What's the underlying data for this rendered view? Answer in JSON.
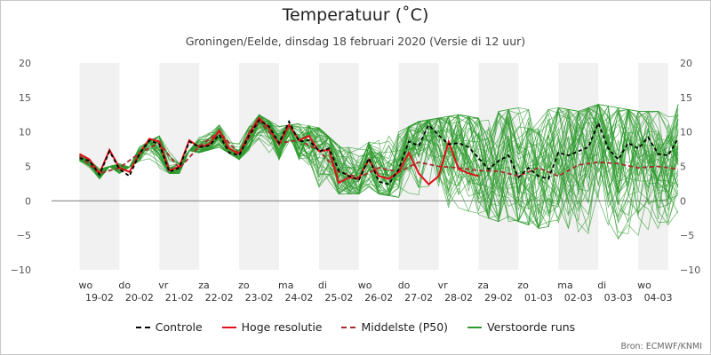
{
  "chart_data": {
    "type": "line",
    "title": "Temperatuur (˚C)",
    "subtitle": "Groningen/Eelde, dinsdag 18 februari 2020 (Versie di 12 uur)",
    "source": "Bron: ECMWF/KNMI",
    "ylim": [
      -10,
      20
    ],
    "yticks": [
      -10,
      -5,
      0,
      5,
      10,
      15,
      20
    ],
    "xlim": [
      0,
      15.5
    ],
    "days": [
      {
        "weekday": "wo",
        "date": "19-02"
      },
      {
        "weekday": "do",
        "date": "20-02"
      },
      {
        "weekday": "vr",
        "date": "21-02"
      },
      {
        "weekday": "za",
        "date": "22-02"
      },
      {
        "weekday": "zo",
        "date": "23-02"
      },
      {
        "weekday": "ma",
        "date": "24-02"
      },
      {
        "weekday": "di",
        "date": "25-02"
      },
      {
        "weekday": "wo",
        "date": "26-02"
      },
      {
        "weekday": "do",
        "date": "27-02"
      },
      {
        "weekday": "vr",
        "date": "28-02"
      },
      {
        "weekday": "za",
        "date": "29-02"
      },
      {
        "weekday": "zo",
        "date": "01-03"
      },
      {
        "weekday": "ma",
        "date": "02-03"
      },
      {
        "weekday": "di",
        "date": "03-03"
      },
      {
        "weekday": "wo",
        "date": "04-03"
      }
    ],
    "legend": [
      {
        "label": "Controle",
        "color": "#000000",
        "dash": "4,3",
        "key": "controle"
      },
      {
        "label": "Hoge resolutie",
        "color": "#e0101a",
        "dash": "",
        "key": "hres"
      },
      {
        "label": "Middelste (P50)",
        "color": "#a52a2a",
        "dash": "5,3",
        "key": "p50"
      },
      {
        "label": "Verstoorde runs",
        "color": "#2e9b2e",
        "dash": "",
        "key": "ens"
      }
    ],
    "series": [
      {
        "name": "Controle",
        "x": [
          0.0,
          0.25,
          0.5,
          0.75,
          1.0,
          1.25,
          1.5,
          1.75,
          2.0,
          2.25,
          2.5,
          2.75,
          3.0,
          3.25,
          3.5,
          3.75,
          4.0,
          4.25,
          4.5,
          4.75,
          5.0,
          5.25,
          5.5,
          5.75,
          6.0,
          6.25,
          6.5,
          6.75,
          7.0,
          7.25,
          7.5,
          7.75,
          8.0,
          8.25,
          8.5,
          8.75,
          9.0,
          9.25,
          9.5,
          9.75,
          10.0,
          10.25,
          10.5,
          10.75,
          11.0,
          11.25,
          11.5,
          11.75,
          12.0,
          12.25,
          12.5,
          12.75,
          13.0,
          13.25,
          13.5,
          13.75,
          14.0,
          14.25,
          14.5,
          14.75,
          15.0
        ],
        "values": [
          6.2,
          5.8,
          3.8,
          7.2,
          4.6,
          3.6,
          6.8,
          8.8,
          8.2,
          4.2,
          4.8,
          8.6,
          7.8,
          8.0,
          9.6,
          7.0,
          6.6,
          9.5,
          11.7,
          10.8,
          8.4,
          11.5,
          8.6,
          8.8,
          7.2,
          7.6,
          4.4,
          3.6,
          3.0,
          6.2,
          2.8,
          2.4,
          4.6,
          8.6,
          8.0,
          11.0,
          9.5,
          8.2,
          8.4,
          7.8,
          6.2,
          4.6,
          5.8,
          6.6,
          3.4,
          4.8,
          3.6,
          3.2,
          7.0,
          6.6,
          7.2,
          7.8,
          11.3,
          7.6,
          6.0,
          8.4,
          7.6,
          9.2,
          6.8,
          6.6,
          9.0
        ]
      },
      {
        "name": "Hoge resolutie",
        "x": [
          0.0,
          0.25,
          0.5,
          0.75,
          1.0,
          1.25,
          1.5,
          1.75,
          2.0,
          2.25,
          2.5,
          2.75,
          3.0,
          3.25,
          3.5,
          3.75,
          4.0,
          4.25,
          4.5,
          4.75,
          5.0,
          5.25,
          5.5,
          5.75,
          6.0,
          6.25,
          6.5,
          6.75,
          7.0,
          7.25,
          7.5,
          7.75,
          8.0,
          8.25,
          8.5,
          8.75,
          9.0,
          9.25,
          9.5,
          9.75,
          10.0
        ],
        "values": [
          6.8,
          6.0,
          4.0,
          7.4,
          4.8,
          4.2,
          6.8,
          9.0,
          8.6,
          4.4,
          5.0,
          8.8,
          7.8,
          8.2,
          10.2,
          7.6,
          6.8,
          9.8,
          12.0,
          10.6,
          8.2,
          11.0,
          8.8,
          9.4,
          7.2,
          7.4,
          2.6,
          3.4,
          3.2,
          6.0,
          3.6,
          3.2,
          4.2,
          7.0,
          4.0,
          2.4,
          3.6,
          8.6,
          4.6,
          4.0,
          3.6
        ]
      },
      {
        "name": "Middelste (P50)",
        "x": [
          0.0,
          0.5,
          1.0,
          1.5,
          2.0,
          2.5,
          3.0,
          3.5,
          4.0,
          4.5,
          5.0,
          5.5,
          6.0,
          6.5,
          7.0,
          7.5,
          8.0,
          8.5,
          9.0,
          9.5,
          10.0,
          10.5,
          11.0,
          11.5,
          12.0,
          12.5,
          13.0,
          13.5,
          14.0,
          14.5,
          15.0
        ],
        "values": [
          6.5,
          4.0,
          4.8,
          6.9,
          8.4,
          4.7,
          7.9,
          10.0,
          6.8,
          11.6,
          8.4,
          8.8,
          7.3,
          4.2,
          3.4,
          4.8,
          4.2,
          5.6,
          5.0,
          4.8,
          4.4,
          4.3,
          3.6,
          4.8,
          3.6,
          5.2,
          5.6,
          5.4,
          4.8,
          5.0,
          4.6
        ]
      }
    ],
    "ensemble_spread": {
      "x": [
        0.0,
        0.5,
        1.0,
        1.5,
        2.0,
        2.5,
        3.0,
        3.5,
        4.0,
        4.5,
        5.0,
        5.5,
        6.0,
        6.5,
        7.0,
        7.5,
        8.0,
        8.5,
        9.0,
        9.5,
        10.0,
        10.5,
        11.0,
        11.5,
        12.0,
        12.5,
        13.0,
        13.5,
        14.0,
        14.5,
        15.0
      ],
      "min": [
        5.8,
        3.2,
        4.0,
        5.8,
        4.0,
        4.0,
        7.0,
        7.8,
        6.0,
        8.0,
        6.0,
        6.0,
        2.0,
        1.0,
        1.0,
        1.0,
        0.5,
        -0.5,
        -1.0,
        -1.0,
        -2.0,
        -3.0,
        -3.0,
        -4.0,
        -3.5,
        -4.5,
        -5.0,
        -5.5,
        -5.0,
        -4.0,
        -3.0
      ],
      "max": [
        7.2,
        4.6,
        5.4,
        8.0,
        9.4,
        5.4,
        9.2,
        11.0,
        9.0,
        12.5,
        10.8,
        11.2,
        10.6,
        8.0,
        7.5,
        9.5,
        10.0,
        11.5,
        12.0,
        12.5,
        12.0,
        13.0,
        13.5,
        13.0,
        13.5,
        13.0,
        14.0,
        13.5,
        13.0,
        13.0,
        14.0
      ]
    }
  }
}
